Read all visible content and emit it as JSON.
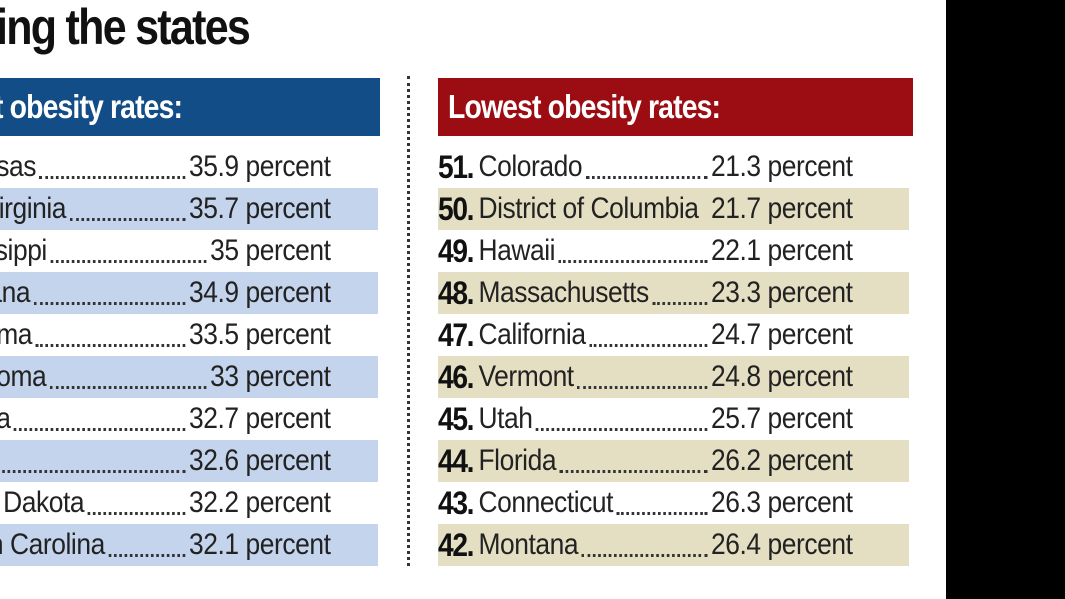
{
  "title": "ing the states",
  "left_panel": {
    "heading": "t obesity rates:",
    "rows": [
      {
        "name": "nsas",
        "value": "35.9 percent"
      },
      {
        "name": "Virginia",
        "value": "35.7 percent"
      },
      {
        "name": "ssippi",
        "value": "35 percent"
      },
      {
        "name": "iana",
        "value": "34.9 percent"
      },
      {
        "name": "ama",
        "value": "33.5 percent"
      },
      {
        "name": "homa",
        "value": "33 percent"
      },
      {
        "name": "na",
        "value": "32.7 percent"
      },
      {
        "name": "",
        "value": "32.6 percent"
      },
      {
        "name": "h Dakota",
        "value": "32.2 percent"
      },
      {
        "name": "th Carolina",
        "value": "32.1 percent"
      }
    ]
  },
  "right_panel": {
    "heading": "Lowest obesity rates:",
    "rows": [
      {
        "rank": "51.",
        "name": "Colorado",
        "value": "21.3 percent"
      },
      {
        "rank": "50.",
        "name": "District of Columbia",
        "value": "21.7 percent"
      },
      {
        "rank": "49.",
        "name": "Hawaii",
        "value": "22.1 percent"
      },
      {
        "rank": "48.",
        "name": "Massachusetts",
        "value": "23.3 percent"
      },
      {
        "rank": "47.",
        "name": "California",
        "value": "24.7 percent"
      },
      {
        "rank": "46.",
        "name": "Vermont",
        "value": "24.8 percent"
      },
      {
        "rank": "45.",
        "name": "Utah",
        "value": "25.7 percent"
      },
      {
        "rank": "44.",
        "name": "Florida",
        "value": "26.2 percent"
      },
      {
        "rank": "43.",
        "name": "Connecticut",
        "value": "26.3 percent"
      },
      {
        "rank": "42.",
        "name": "Montana",
        "value": "26.4 percent"
      }
    ]
  },
  "colors": {
    "left_header": "#134d87",
    "right_header": "#9b0d12",
    "left_shade": "#c4d4ed",
    "right_shade": "#e4dfc3"
  }
}
